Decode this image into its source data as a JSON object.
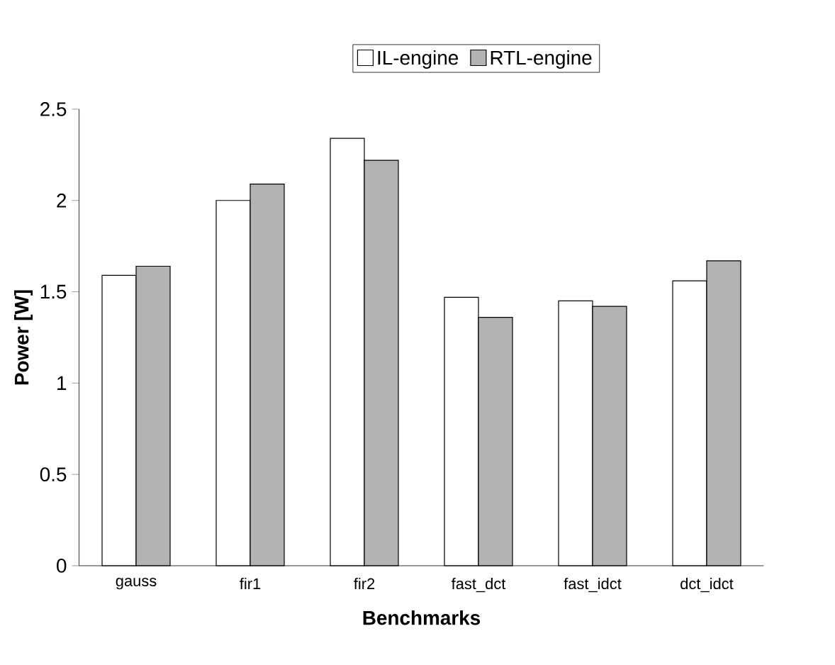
{
  "chart_data": {
    "type": "bar",
    "xlabel": "Benchmarks",
    "ylabel": "Power [W]",
    "categories": [
      "gauss",
      "fir1",
      "fir2",
      "fast_dct",
      "fast_idct",
      "dct_idct"
    ],
    "series": [
      {
        "name": "IL-engine",
        "color": "#ffffff",
        "values": [
          1.59,
          2.0,
          2.34,
          1.47,
          1.45,
          1.56
        ]
      },
      {
        "name": "RTL-engine",
        "color": "#b3b3b3",
        "values": [
          1.64,
          2.09,
          2.22,
          1.36,
          1.42,
          1.67
        ]
      }
    ],
    "ylim": [
      0,
      2.5
    ],
    "yticks": [
      0,
      0.5,
      1,
      1.5,
      2,
      2.5
    ],
    "grid": false,
    "legend": "top"
  }
}
